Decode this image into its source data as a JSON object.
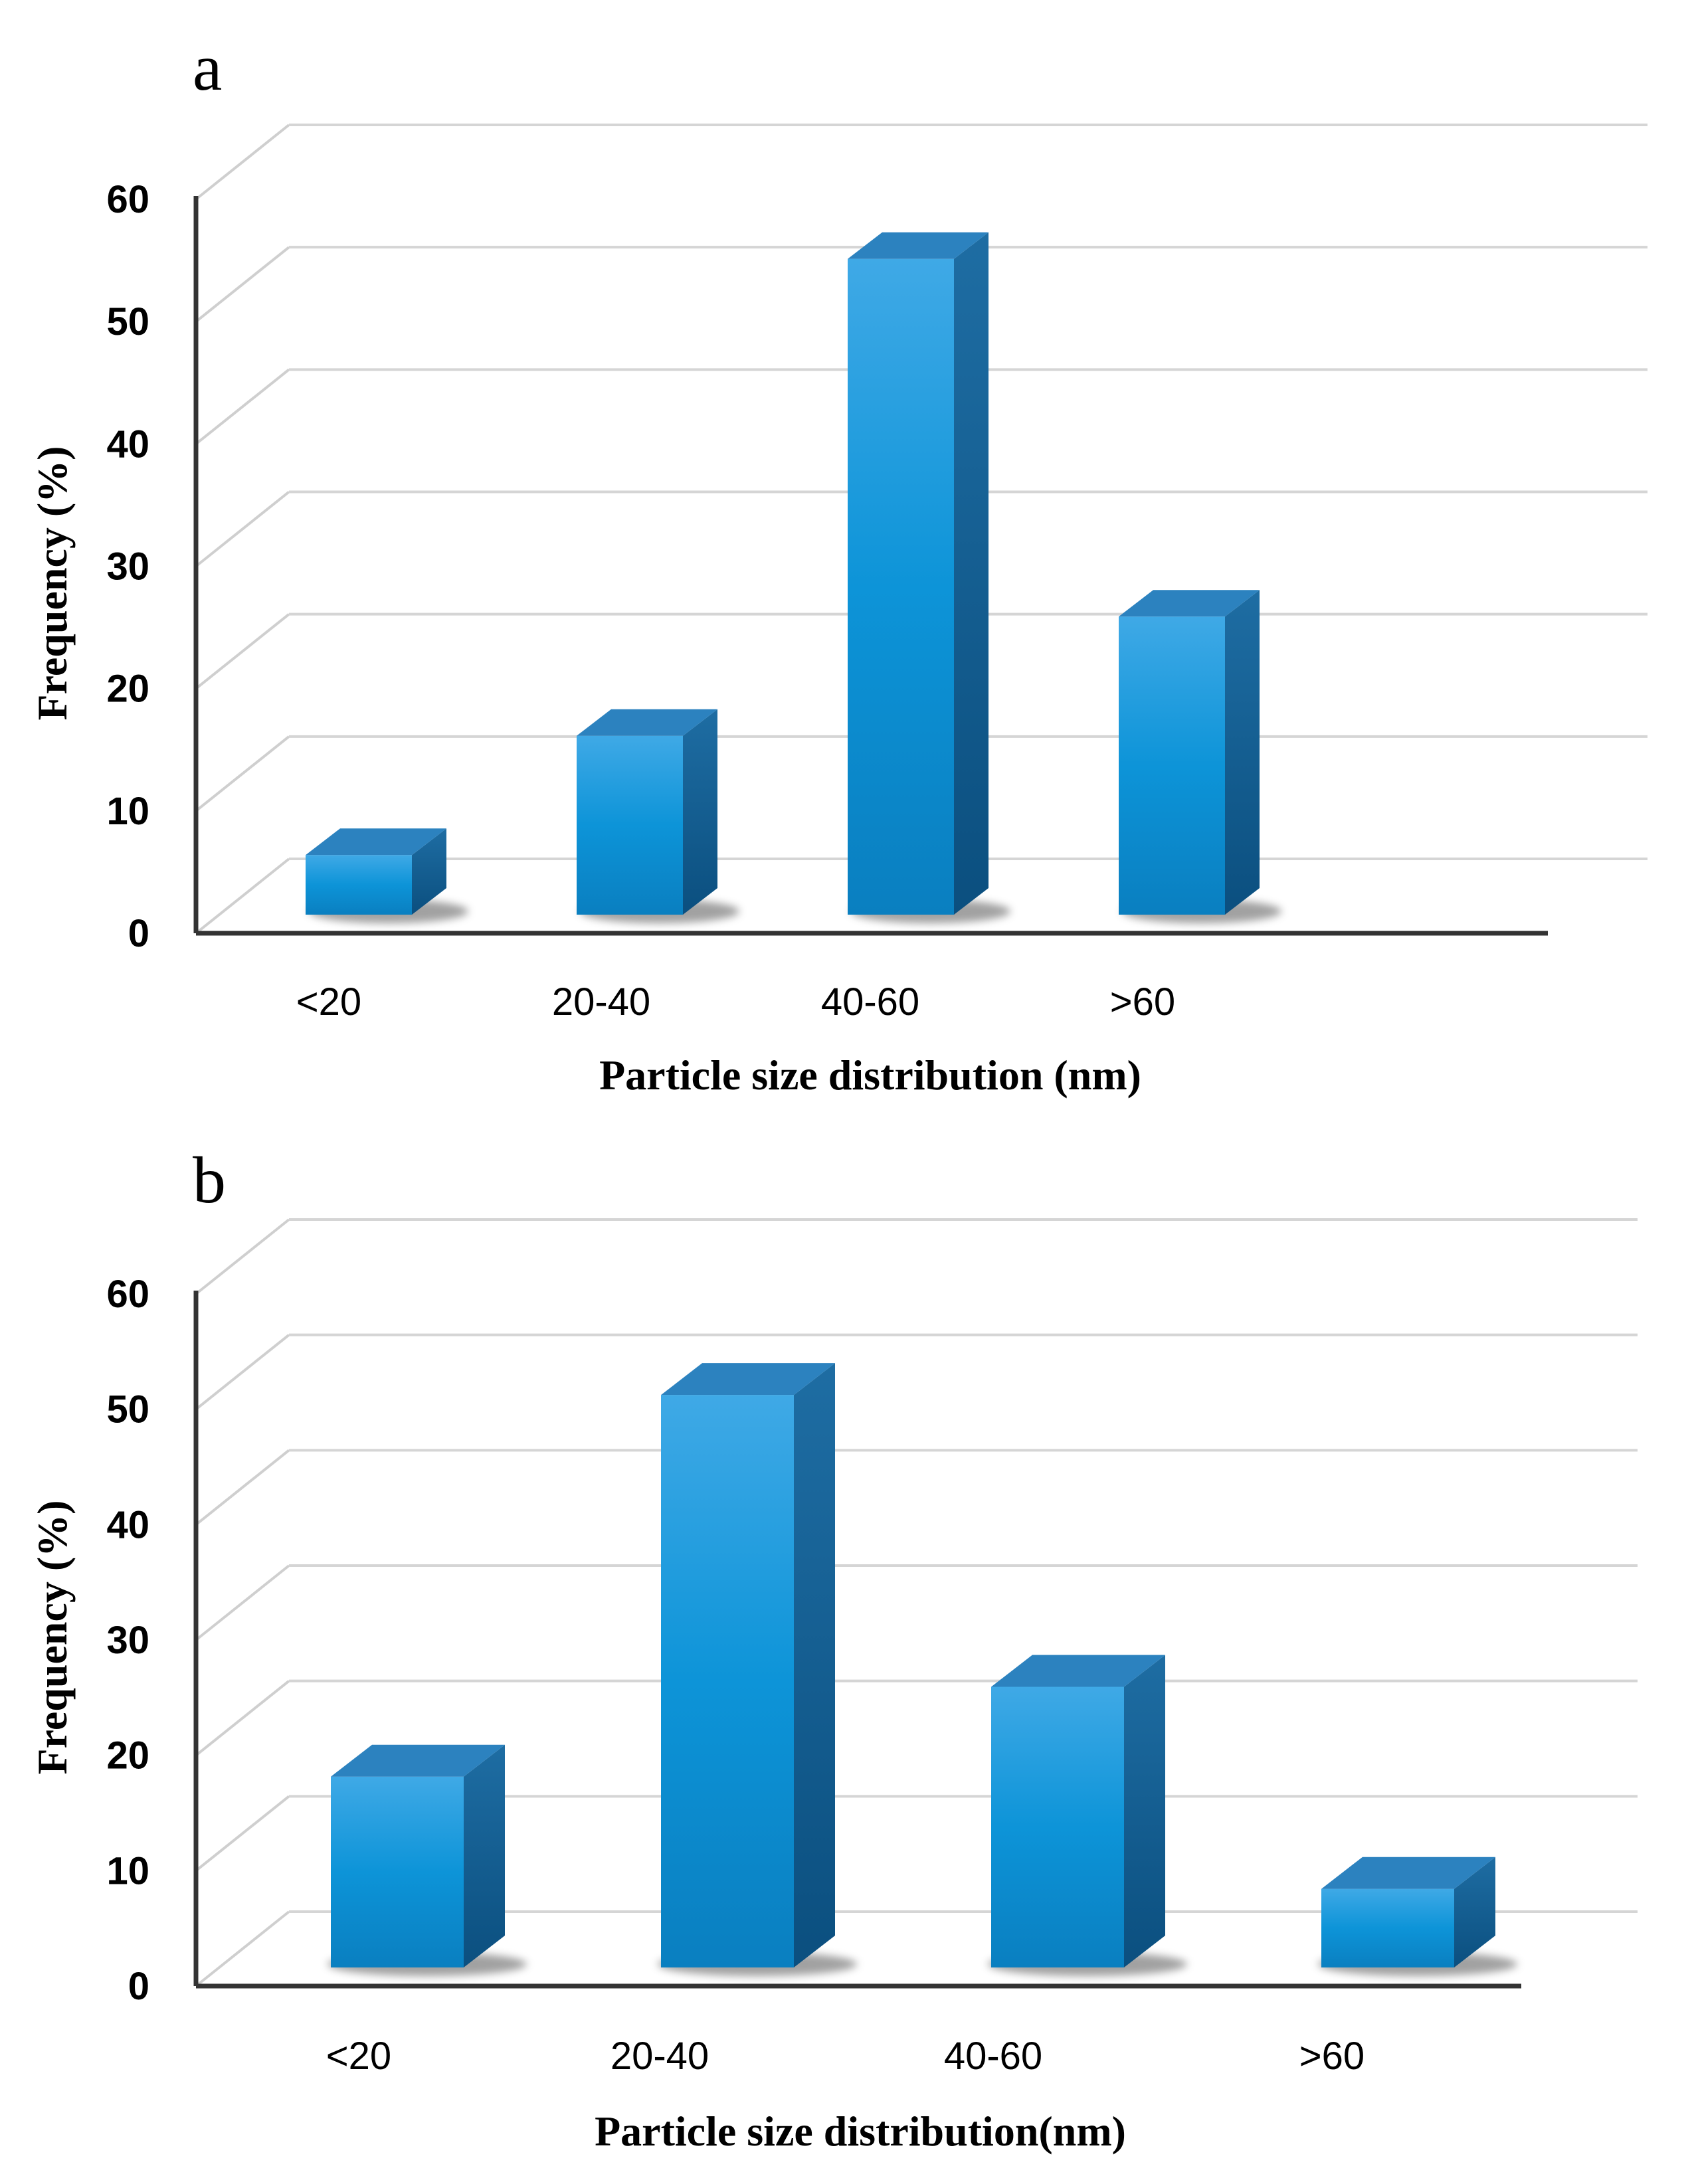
{
  "chart_data": [
    {
      "panel": "a",
      "type": "bar",
      "categories": [
        "<20",
        "20-40",
        "40-60",
        ">60"
      ],
      "values": [
        5,
        15,
        55,
        25
      ],
      "xlabel": "Particle size distribution (nm)",
      "ylabel": "Frequency (%)",
      "ylim": [
        0,
        60
      ],
      "yticks": [
        "0",
        "10",
        "20",
        "30",
        "40",
        "50",
        "60"
      ],
      "grid": true,
      "bar_color": "#1f95dc"
    },
    {
      "panel": "b",
      "type": "bar",
      "categories": [
        "<20",
        "20-40",
        "40-60",
        ">60"
      ],
      "values": [
        17,
        51,
        25,
        7
      ],
      "xlabel": "Particle size distribution(nm)",
      "ylabel": "Frequency (%)",
      "ylim": [
        0,
        60
      ],
      "yticks": [
        "0",
        "10",
        "20",
        "30",
        "40",
        "50",
        "60"
      ],
      "grid": true,
      "bar_color": "#1f95dc"
    }
  ]
}
